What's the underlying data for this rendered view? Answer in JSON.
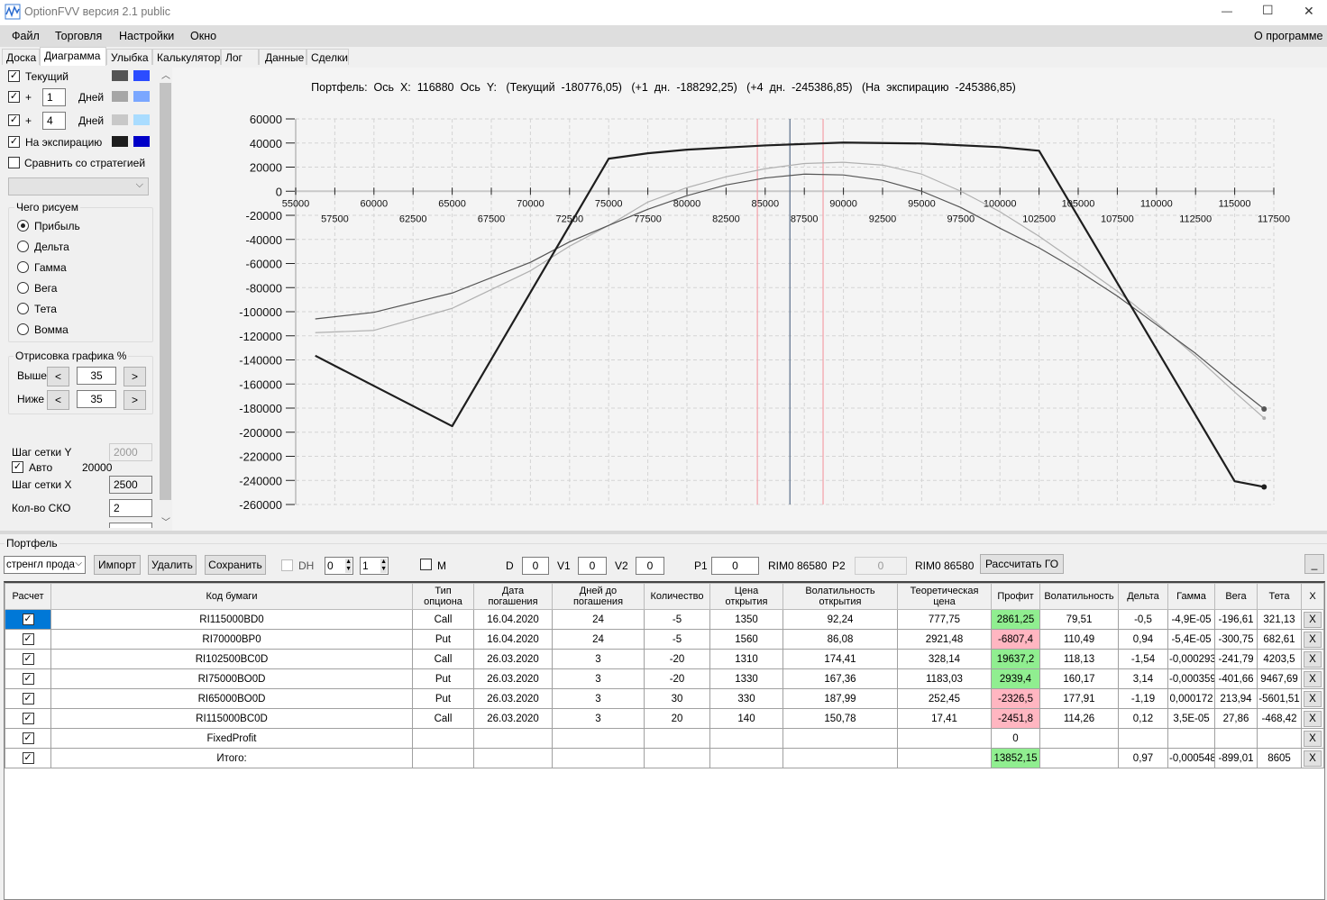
{
  "window": {
    "title": "OptionFVV версия 2.1 public",
    "minimize": "—",
    "maximize": "☐",
    "close": "✕"
  },
  "menu": {
    "items": [
      "Файл",
      "Торговля",
      "Настройки",
      "Окно"
    ],
    "about": "О программе"
  },
  "tabs": [
    "Доска",
    "Диаграмма",
    "Улыбка",
    "Калькулятор",
    "Лог",
    "Данные",
    "Сделки"
  ],
  "active_tab": "Диаграмма",
  "left_panel": {
    "current": {
      "label": "Текущий",
      "checked": true,
      "colors": [
        "#555555",
        "#2b4cff"
      ]
    },
    "plus1": {
      "plus": "+",
      "value": "1",
      "unit": "Дней",
      "checked": true,
      "colors": [
        "#a6a6a6",
        "#7aa7ff"
      ]
    },
    "plus4": {
      "plus": "+",
      "value": "4",
      "unit": "Дней",
      "checked": true,
      "colors": [
        "#c8c8c8",
        "#a9dcff"
      ]
    },
    "expiration": {
      "label": "На экспирацию",
      "checked": true,
      "colors": [
        "#1e1e1e",
        "#0000c8"
      ]
    },
    "compare": {
      "label": "Сравнить со стратегией",
      "checked": false
    },
    "draw_group": {
      "title": "Чего рисуем",
      "options": [
        "Прибыль",
        "Дельта",
        "Гамма",
        "Вега",
        "Тета",
        "Вомма"
      ],
      "selected": "Прибыль"
    },
    "range_group": {
      "title": "Отрисовка графика %",
      "above_label": "Выше",
      "above_value": "35",
      "below_label": "Ниже",
      "below_value": "35",
      "dec": "<",
      "inc": ">"
    },
    "grid_y": {
      "label": "Шаг сетки Y",
      "value": "2000"
    },
    "auto": {
      "label": "Авто",
      "checked": true,
      "value": "20000"
    },
    "grid_x": {
      "label": "Шаг сетки X",
      "value": "2500"
    },
    "sko": {
      "label": "Кол-во СКО",
      "value": "2"
    }
  },
  "chart_data": {
    "type": "line",
    "title": "Портфель:  Ось  X:  116880  Ось  Y:   (Текущий  -180776,05)   (+1  дн.  -188292,25)   (+4  дн.  -245386,85)   (На  экспирацию  -245386,85)",
    "xlim": [
      55000,
      117500
    ],
    "ylim": [
      -260000,
      60000
    ],
    "x_ticks_upper": [
      55000,
      60000,
      65000,
      70000,
      75000,
      80000,
      85000,
      90000,
      95000,
      100000,
      105000,
      110000,
      115000
    ],
    "x_ticks_lower": [
      57500,
      62500,
      67500,
      72500,
      77500,
      82500,
      87500,
      92500,
      97500,
      102500,
      107500,
      112500,
      117500
    ],
    "y_ticks": [
      60000,
      40000,
      20000,
      0,
      -20000,
      -40000,
      -60000,
      -80000,
      -100000,
      -120000,
      -140000,
      -160000,
      -180000,
      -200000,
      -220000,
      -240000,
      -260000
    ],
    "grid": true,
    "vertical_markers": [
      {
        "x": 84500,
        "color": "#f4a0a8"
      },
      {
        "x": 86580,
        "color": "#5a6e8a"
      },
      {
        "x": 88700,
        "color": "#f4a0a8"
      }
    ],
    "series": [
      {
        "key": "plus1",
        "color": "#b0b0b0",
        "width": 1.2,
        "x": [
          56250,
          60000,
          65000,
          70000,
          72500,
          75000,
          77500,
          80000,
          82500,
          85000,
          87500,
          90000,
          92500,
          95000,
          97500,
          100000,
          102500,
          105000,
          107500,
          110000,
          112500,
          115000,
          116880
        ],
        "y": [
          -117400,
          -115500,
          -97200,
          -66000,
          -45600,
          -28400,
          -9000,
          3000,
          12000,
          18700,
          23000,
          24000,
          21700,
          14200,
          0,
          -17000,
          -37400,
          -60000,
          -83000,
          -109000,
          -137000,
          -166700,
          -188292
        ]
      },
      {
        "key": "current",
        "color": "#555555",
        "width": 1.2,
        "x": [
          56250,
          60000,
          65000,
          70000,
          72500,
          75000,
          77500,
          80000,
          82500,
          85000,
          87500,
          90000,
          92500,
          95000,
          97500,
          100000,
          102500,
          105000,
          107500,
          110000,
          112500,
          115000,
          116880
        ],
        "y": [
          -106000,
          -100500,
          -84500,
          -59000,
          -42000,
          -28400,
          -15000,
          -3700,
          5200,
          11000,
          14200,
          13500,
          9000,
          0,
          -13500,
          -30700,
          -47000,
          -66000,
          -87000,
          -110700,
          -134600,
          -161500,
          -180776
        ]
      },
      {
        "key": "expiration",
        "color": "#1e1e1e",
        "width": 2.2,
        "x": [
          56250,
          65000,
          75000,
          77500,
          80000,
          85000,
          87500,
          90000,
          95000,
          100000,
          102500,
          115000,
          116880
        ],
        "y": [
          -136500,
          -195000,
          27000,
          31500,
          34500,
          38000,
          39200,
          40400,
          39600,
          36600,
          33600,
          -240700,
          -245387
        ]
      }
    ]
  },
  "portfolio": {
    "title": "Портфель",
    "strategy": "стренгл прода",
    "import": "Импорт",
    "delete": "Удалить",
    "save": "Сохранить",
    "dh_label": "DH",
    "spin1": "0",
    "spin2": "1",
    "m_label": "M",
    "d_label": "D",
    "d_value": "0",
    "v1_label": "V1",
    "v1_value": "0",
    "v2_label": "V2",
    "v2_value": "0",
    "p1_label": "P1",
    "p1_value": "0",
    "rim1": "RIM0 86580",
    "p2_label": "P2",
    "p2_value": "0",
    "rim2": "RIM0 86580",
    "calc_go": "Рассчитать ГО",
    "minimize": "_"
  },
  "table": {
    "headers": [
      "Расчет",
      "Код бумаги",
      "Тип\nопциона",
      "Дата\nпогашения",
      "Дней до\nпогашения",
      "Количество",
      "Цена\nоткрытия",
      "Волатильность\nоткрытия",
      "Теоретическая\nцена",
      "Профит",
      "Волатильность",
      "Дельта",
      "Гамма",
      "Вега",
      "Тета",
      "X"
    ],
    "rows": [
      {
        "checked": true,
        "cells": [
          "RI115000BD0",
          "Call",
          "16.04.2020",
          "24",
          "-5",
          "1350",
          "92,24",
          "777,75",
          "2861,25",
          "79,51",
          "-0,5",
          "-4,9E-05",
          "-196,61",
          "321,13"
        ],
        "profit": "pos"
      },
      {
        "checked": true,
        "cells": [
          "RI70000BP0",
          "Put",
          "16.04.2020",
          "24",
          "-5",
          "1560",
          "86,08",
          "2921,48",
          "-6807,4",
          "110,49",
          "0,94",
          "-5,4E-05",
          "-300,75",
          "682,61"
        ],
        "profit": "neg"
      },
      {
        "checked": true,
        "cells": [
          "RI102500BC0D",
          "Call",
          "26.03.2020",
          "3",
          "-20",
          "1310",
          "174,41",
          "328,14",
          "19637,2",
          "118,13",
          "-1,54",
          "-0,000293",
          "-241,79",
          "4203,5"
        ],
        "profit": "pos"
      },
      {
        "checked": true,
        "cells": [
          "RI75000BO0D",
          "Put",
          "26.03.2020",
          "3",
          "-20",
          "1330",
          "167,36",
          "1183,03",
          "2939,4",
          "160,17",
          "3,14",
          "-0,000359",
          "-401,66",
          "9467,69"
        ],
        "profit": "pos"
      },
      {
        "checked": true,
        "cells": [
          "RI65000BO0D",
          "Put",
          "26.03.2020",
          "3",
          "30",
          "330",
          "187,99",
          "252,45",
          "-2326,5",
          "177,91",
          "-1,19",
          "0,000172",
          "213,94",
          "-5601,51"
        ],
        "profit": "neg"
      },
      {
        "checked": true,
        "cells": [
          "RI115000BC0D",
          "Call",
          "26.03.2020",
          "3",
          "20",
          "140",
          "150,78",
          "17,41",
          "-2451,8",
          "114,26",
          "0,12",
          "3,5E-05",
          "27,86",
          "-468,42"
        ],
        "profit": "neg"
      },
      {
        "checked": true,
        "cells": [
          "FixedProfit",
          "",
          "",
          "",
          "",
          "",
          "",
          "",
          "0",
          "",
          "",
          "",
          "",
          ""
        ],
        "profit": "none"
      },
      {
        "checked": true,
        "cells": [
          "Итого:",
          "",
          "",
          "",
          "",
          "",
          "",
          "",
          "13852,15",
          "",
          "0,97",
          "-0,000548",
          "-899,01",
          "8605"
        ],
        "profit": "pos"
      }
    ],
    "delete_label": "X"
  }
}
